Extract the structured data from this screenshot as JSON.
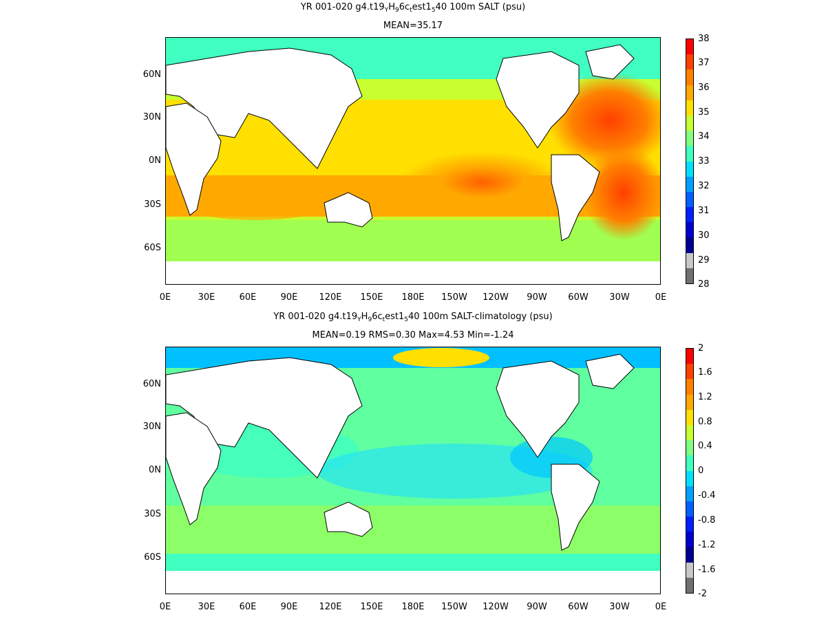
{
  "panels": [
    {
      "title_pre": "YR 001-020 g4.t19",
      "sub1": "Y",
      "mid1": "H",
      "sub2": "9",
      "mid2": "6c",
      "sub3": "t",
      "mid3": "est1",
      "sub4": "5",
      "title_post": "40 100m SALT (psu)",
      "stats": "MEAN=35.17",
      "colorbar_labels": [
        "38",
        "37",
        "36",
        "35",
        "34",
        "33",
        "32",
        "31",
        "30",
        "29",
        "28"
      ]
    },
    {
      "title_pre": "YR 001-020 g4.t19",
      "sub1": "Y",
      "mid1": "H",
      "sub2": "9",
      "mid2": "6c",
      "sub3": "t",
      "mid3": "est1",
      "sub4": "5",
      "title_post": "40 100m SALT-climatology (psu)",
      "stats": "MEAN=0.19   RMS=0.30   Max=4.53   Min=-1.24",
      "colorbar_labels": [
        "2",
        "1.6",
        "1.2",
        "0.8",
        "0.4",
        "0",
        "-0.4",
        "-0.8",
        "-1.2",
        "-1.6",
        "-2"
      ]
    }
  ],
  "lat_labels": [
    "60N",
    "30N",
    "0N",
    "30S",
    "60S"
  ],
  "lon_labels": [
    "0E",
    "30E",
    "60E",
    "90E",
    "120E",
    "150E",
    "180E",
    "150W",
    "120W",
    "90W",
    "60W",
    "30W",
    "0E"
  ],
  "colorbar_colors": [
    "#ff0000",
    "#ff4000",
    "#ff8000",
    "#ffa800",
    "#ffe000",
    "#c8ff30",
    "#80ff80",
    "#40ffc0",
    "#00e0ff",
    "#00a0ff",
    "#0060ff",
    "#0020ff",
    "#0000d0",
    "#000090",
    "#c8c8c8",
    "#707070"
  ],
  "land_color": "#ffffff"
}
